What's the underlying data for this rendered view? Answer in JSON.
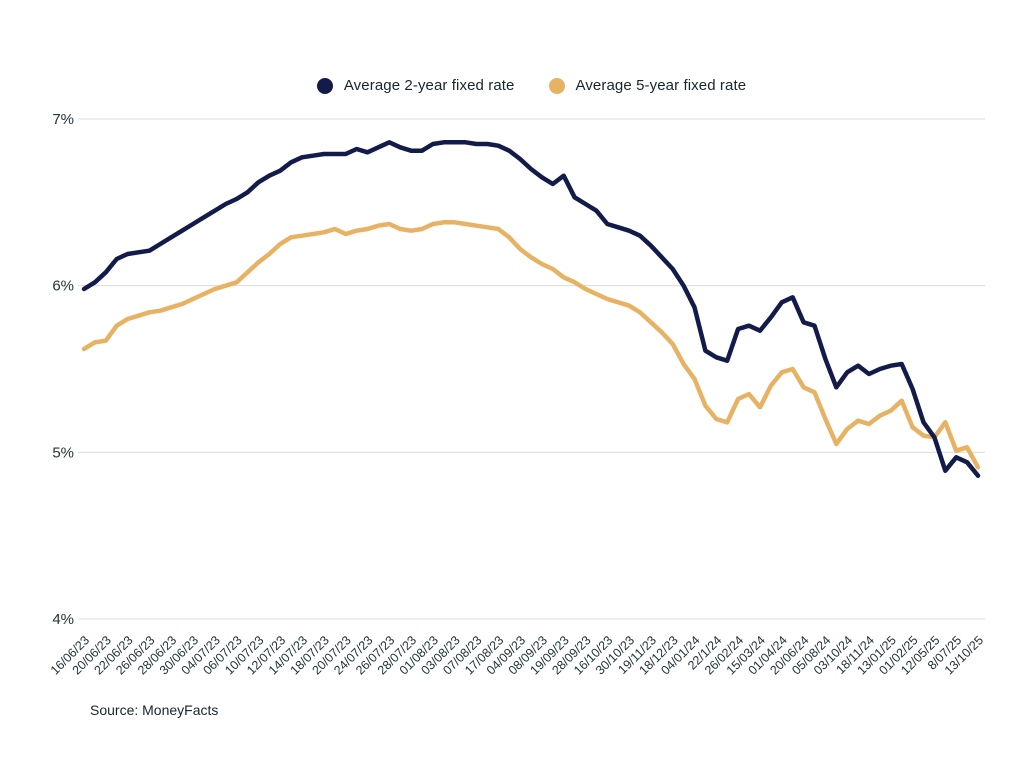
{
  "source": "Source: MoneyFacts",
  "chart_data": {
    "type": "line",
    "title": "",
    "legend_position": "top",
    "grid": "horizontal",
    "grid_color": "#dcdcdc",
    "text_color": "#213438",
    "ylim": [
      4,
      7
    ],
    "y_ticks": [
      {
        "value": 7,
        "label": "7%"
      },
      {
        "value": 6,
        "label": "6%"
      },
      {
        "value": 5,
        "label": "5%"
      },
      {
        "value": 4,
        "label": "4%"
      }
    ],
    "label_every": 2,
    "x_tick_labels": [
      "16/06/23",
      "20/06/23",
      "22/06/23",
      "26/06/23",
      "28/06/23",
      "30/06/23",
      "04/07/23",
      "06/07/23",
      "10/07/23",
      "12/07/23",
      "14/07/23",
      "18/07/23",
      "20/07/23",
      "24/07/23",
      "26/07/23",
      "28/07/23",
      "01/08/23",
      "03/08/23",
      "07/08/23",
      "17/08/23",
      "04/09/23",
      "08/09/23",
      "19/09/23",
      "28/09/23",
      "16/10/23",
      "30/10/23",
      "19/11/23",
      "18/12/23",
      "04/01/24",
      "22/1/24",
      "26/02/24",
      "15/03/24",
      "01/04/24",
      "20/06/24",
      "05/08/24",
      "03/10/24",
      "18/11/24",
      "13/01/25",
      "01/02/25",
      "12/05/25",
      "8/07/25",
      "13/10/25"
    ],
    "series": [
      {
        "name": "Average 2-year fixed rate",
        "color": "#131b4a",
        "values": [
          5.98,
          6.02,
          6.08,
          6.16,
          6.19,
          6.2,
          6.21,
          6.25,
          6.29,
          6.33,
          6.37,
          6.41,
          6.45,
          6.49,
          6.52,
          6.56,
          6.62,
          6.66,
          6.69,
          6.74,
          6.77,
          6.78,
          6.79,
          6.79,
          6.79,
          6.82,
          6.8,
          6.83,
          6.86,
          6.83,
          6.81,
          6.81,
          6.85,
          6.86,
          6.86,
          6.86,
          6.85,
          6.85,
          6.84,
          6.81,
          6.76,
          6.7,
          6.65,
          6.61,
          6.66,
          6.53,
          6.49,
          6.45,
          6.37,
          6.35,
          6.33,
          6.3,
          6.24,
          6.17,
          6.1,
          6.0,
          5.87,
          5.61,
          5.57,
          5.55,
          5.74,
          5.76,
          5.73,
          5.81,
          5.9,
          5.93,
          5.78,
          5.76,
          5.56,
          5.39,
          5.48,
          5.52,
          5.47,
          5.5,
          5.52,
          5.53,
          5.38,
          5.18,
          5.09,
          4.89,
          4.97,
          4.94,
          4.86
        ]
      },
      {
        "name": "Average 5-year fixed rate",
        "color": "#e8b264",
        "values": [
          5.62,
          5.66,
          5.67,
          5.76,
          5.8,
          5.82,
          5.84,
          5.85,
          5.87,
          5.89,
          5.92,
          5.95,
          5.98,
          6.0,
          6.02,
          6.08,
          6.14,
          6.19,
          6.25,
          6.29,
          6.3,
          6.31,
          6.32,
          6.34,
          6.31,
          6.33,
          6.34,
          6.36,
          6.37,
          6.34,
          6.33,
          6.34,
          6.37,
          6.38,
          6.38,
          6.37,
          6.36,
          6.35,
          6.34,
          6.29,
          6.22,
          6.17,
          6.13,
          6.1,
          6.05,
          6.02,
          5.98,
          5.95,
          5.92,
          5.9,
          5.88,
          5.84,
          5.78,
          5.72,
          5.65,
          5.53,
          5.44,
          5.28,
          5.2,
          5.18,
          5.32,
          5.35,
          5.27,
          5.4,
          5.48,
          5.5,
          5.39,
          5.36,
          5.2,
          5.05,
          5.14,
          5.19,
          5.17,
          5.22,
          5.25,
          5.31,
          5.15,
          5.1,
          5.09,
          5.18,
          5.01,
          5.03,
          4.91
        ]
      }
    ]
  }
}
